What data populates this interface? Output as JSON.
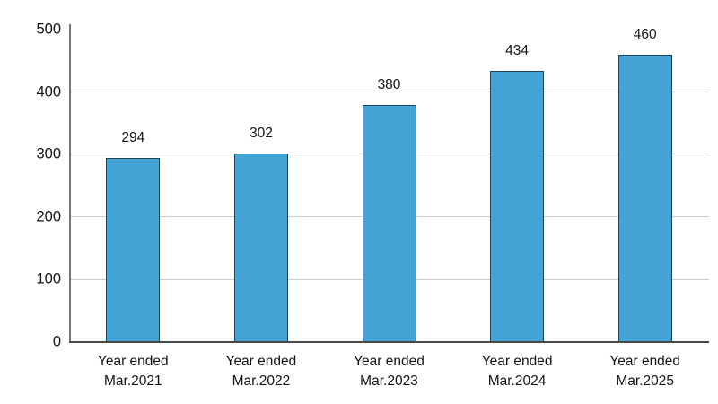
{
  "chart_data": {
    "type": "bar",
    "title": "",
    "xlabel": "",
    "ylabel": "",
    "categories": [
      {
        "line1": "Year ended",
        "line2": "Mar.2021"
      },
      {
        "line1": "Year ended",
        "line2": "Mar.2022"
      },
      {
        "line1": "Year ended",
        "line2": "Mar.2023"
      },
      {
        "line1": "Year ended",
        "line2": "Mar.2024"
      },
      {
        "line1": "Year ended",
        "line2": "Mar.2025"
      }
    ],
    "values": [
      294,
      302,
      380,
      434,
      460
    ],
    "value_labels": [
      "294",
      "302",
      "380",
      "434",
      "460"
    ],
    "ylim": [
      0,
      500
    ],
    "yticks": [
      0,
      100,
      200,
      300,
      400,
      500
    ],
    "grid": "horizontal gridlines at 100-400, no gridline at 500",
    "legend": "none",
    "colors": {
      "bar_fill": "#44a4d6",
      "bar_edge": "#1b4457",
      "gridline": "#cbcbcb",
      "y_axis_line": "#767676",
      "x_axis_line": "#474747",
      "text": "#141414",
      "background": "#ffffff"
    }
  }
}
